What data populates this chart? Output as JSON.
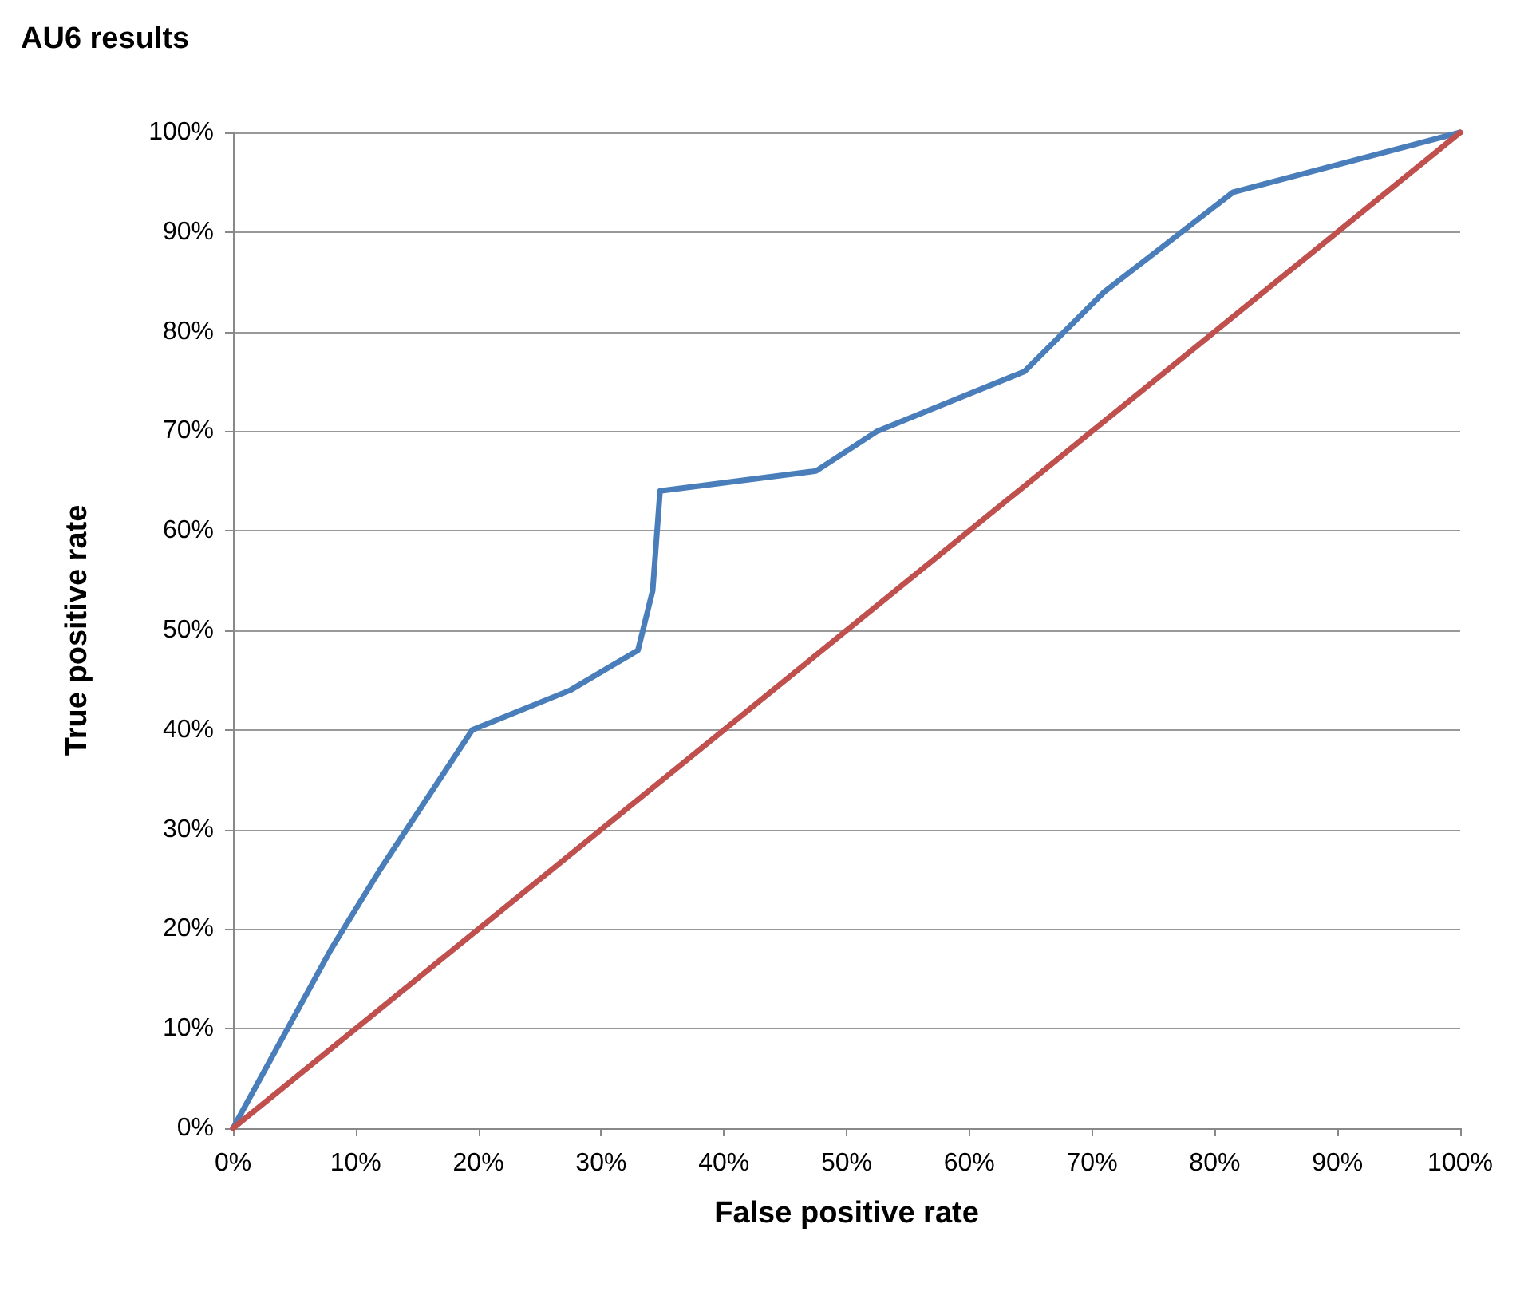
{
  "chart_data": {
    "type": "line",
    "title": "AU6 results",
    "xlabel": "False positive rate",
    "ylabel": "True positive rate",
    "series": [
      {
        "color": "#4a7ebb",
        "x": [
          0,
          8,
          12,
          19.5,
          27.5,
          33,
          34.2,
          34.8,
          47.5,
          52.5,
          64.5,
          71,
          81.5,
          100
        ],
        "values": [
          0,
          18,
          26,
          40,
          44,
          48,
          54,
          64,
          66,
          70,
          76,
          84,
          94,
          100
        ]
      },
      {
        "color": "#c0504d",
        "x": [
          0,
          100
        ],
        "values": [
          0,
          100
        ]
      }
    ],
    "xlim": [
      0,
      100
    ],
    "ylim": [
      0,
      100
    ],
    "xticks": [
      {
        "value": 0,
        "label": "0%"
      },
      {
        "value": 10,
        "label": "10%"
      },
      {
        "value": 20,
        "label": "20%"
      },
      {
        "value": 30,
        "label": "30%"
      },
      {
        "value": 40,
        "label": "40%"
      },
      {
        "value": 50,
        "label": "50%"
      },
      {
        "value": 60,
        "label": "60%"
      },
      {
        "value": 70,
        "label": "70%"
      },
      {
        "value": 80,
        "label": "80%"
      },
      {
        "value": 90,
        "label": "90%"
      },
      {
        "value": 100,
        "label": "100%"
      }
    ],
    "yticks": [
      {
        "value": 0,
        "label": "0%"
      },
      {
        "value": 10,
        "label": "10%"
      },
      {
        "value": 20,
        "label": "20%"
      },
      {
        "value": 30,
        "label": "30%"
      },
      {
        "value": 40,
        "label": "40%"
      },
      {
        "value": 50,
        "label": "50%"
      },
      {
        "value": 60,
        "label": "60%"
      },
      {
        "value": 70,
        "label": "70%"
      },
      {
        "value": 80,
        "label": "80%"
      },
      {
        "value": 90,
        "label": "90%"
      },
      {
        "value": 100,
        "label": "100%"
      }
    ],
    "grid": "y",
    "marker": "none",
    "line_style": "solid"
  }
}
